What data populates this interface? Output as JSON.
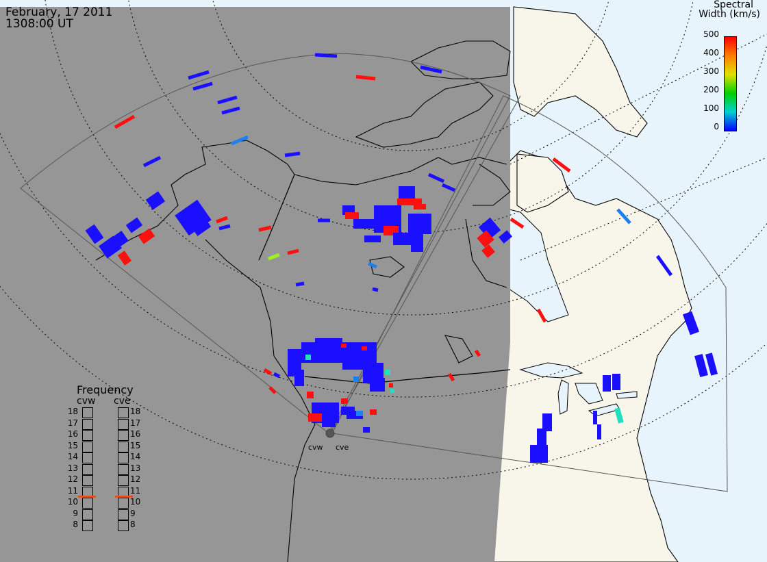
{
  "header": {
    "date": "February, 17 2011",
    "time": "1308:00 UT"
  },
  "colorbar": {
    "title_line1": "Spectral",
    "title_line2": "Width (km/s)",
    "ticks": [
      "500",
      "400",
      "300",
      "200",
      "100",
      "0"
    ],
    "colors": [
      "#ff0000",
      "#ff7f00",
      "#e0e000",
      "#00d000",
      "#00d0d0",
      "#0000ff"
    ]
  },
  "frequency_panel": {
    "title": "Frequency",
    "radars": [
      "cvw",
      "cve"
    ],
    "levels": [
      "18",
      "17",
      "16",
      "15",
      "14",
      "13",
      "12",
      "11",
      "10",
      "9",
      "8"
    ],
    "selected": "11",
    "selected_color": "#e5501f"
  },
  "radar_sites": [
    "cvw",
    "cve"
  ],
  "colors": {
    "night": "#969696",
    "day_land": "#f8f6ea",
    "day_ocean": "#e8f4fc",
    "scatter_low": "#1a10ff",
    "scatter_high": "#ff1010",
    "scatter_mid": "#1f7ff0",
    "scatter_cyan": "#20e0c0",
    "scatter_green": "#a0f020"
  }
}
